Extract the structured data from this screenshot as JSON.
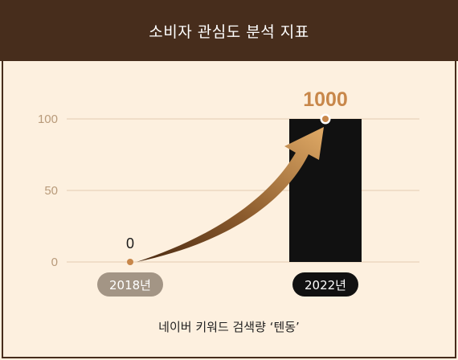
{
  "header": {
    "title": "소비자 관심도 분석 지표"
  },
  "chart_data": {
    "type": "bar",
    "categories": [
      "2018년",
      "2022년"
    ],
    "values": [
      0,
      1000
    ],
    "value_labels": [
      "0",
      "1000"
    ],
    "y_ticks": [
      0,
      50,
      100
    ],
    "ylim": [
      0,
      100
    ],
    "grid": true,
    "title": "",
    "xlabel": "",
    "ylabel": "",
    "colors": {
      "bar": "#111111",
      "accent": "#c8874a",
      "tick": "#b89a7a",
      "grid": "#e3ccb2",
      "pill_2018": "#a39585",
      "pill_2022": "#111111"
    }
  },
  "caption": "네이버 키워드 검색량 ‘텐동’"
}
